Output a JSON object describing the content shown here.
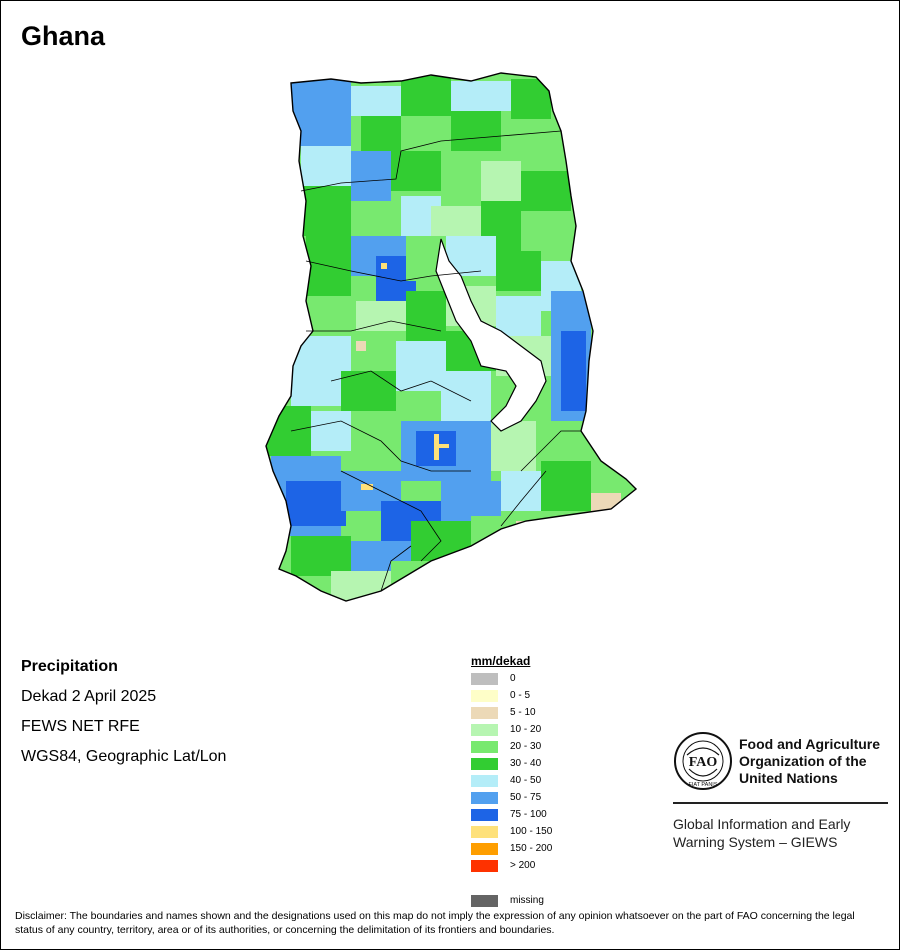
{
  "map": {
    "title": "Ghana",
    "variable": "Precipitation",
    "period": "Dekad 2 April 2025",
    "source": "FEWS NET RFE",
    "projection": "WGS84, Geographic Lat/Lon"
  },
  "legend": {
    "unit": "mm/dekad",
    "classes": [
      {
        "label": "0",
        "color": "#bebebe"
      },
      {
        "label": "0 - 5",
        "color": "#fefec8"
      },
      {
        "label": "5 - 10",
        "color": "#ecd9b7"
      },
      {
        "label": "10 - 20",
        "color": "#b6f5b1"
      },
      {
        "label": "20 - 30",
        "color": "#78e96f"
      },
      {
        "label": "30 - 40",
        "color": "#32cd32"
      },
      {
        "label": "40 - 50",
        "color": "#b4edf8"
      },
      {
        "label": "50 - 75",
        "color": "#52a0ef"
      },
      {
        "label": "75 - 100",
        "color": "#1d64e6"
      },
      {
        "label": "100 - 150",
        "color": "#fee17a"
      },
      {
        "label": "150 - 200",
        "color": "#fe9e00"
      },
      {
        "label": "> 200",
        "color": "#fe3200"
      }
    ],
    "missing": {
      "label": "missing",
      "color": "#646464"
    }
  },
  "branding": {
    "organization": [
      "Food and Agriculture",
      "Organization of the",
      "United Nations"
    ],
    "logo_letters": "FAO",
    "logo_motto": "FIAT PANIS",
    "system": [
      "Global Information and Early",
      "Warning System – GIEWS"
    ]
  },
  "disclaimer": "Disclaimer: The boundaries and names shown and the designations used on this map do not imply the expression of any opinion whatsoever on the part of FAO concerning the legal status of any country, territory, area or of its authorities, or concerning the delimitation of its frontiers and boundaries."
}
